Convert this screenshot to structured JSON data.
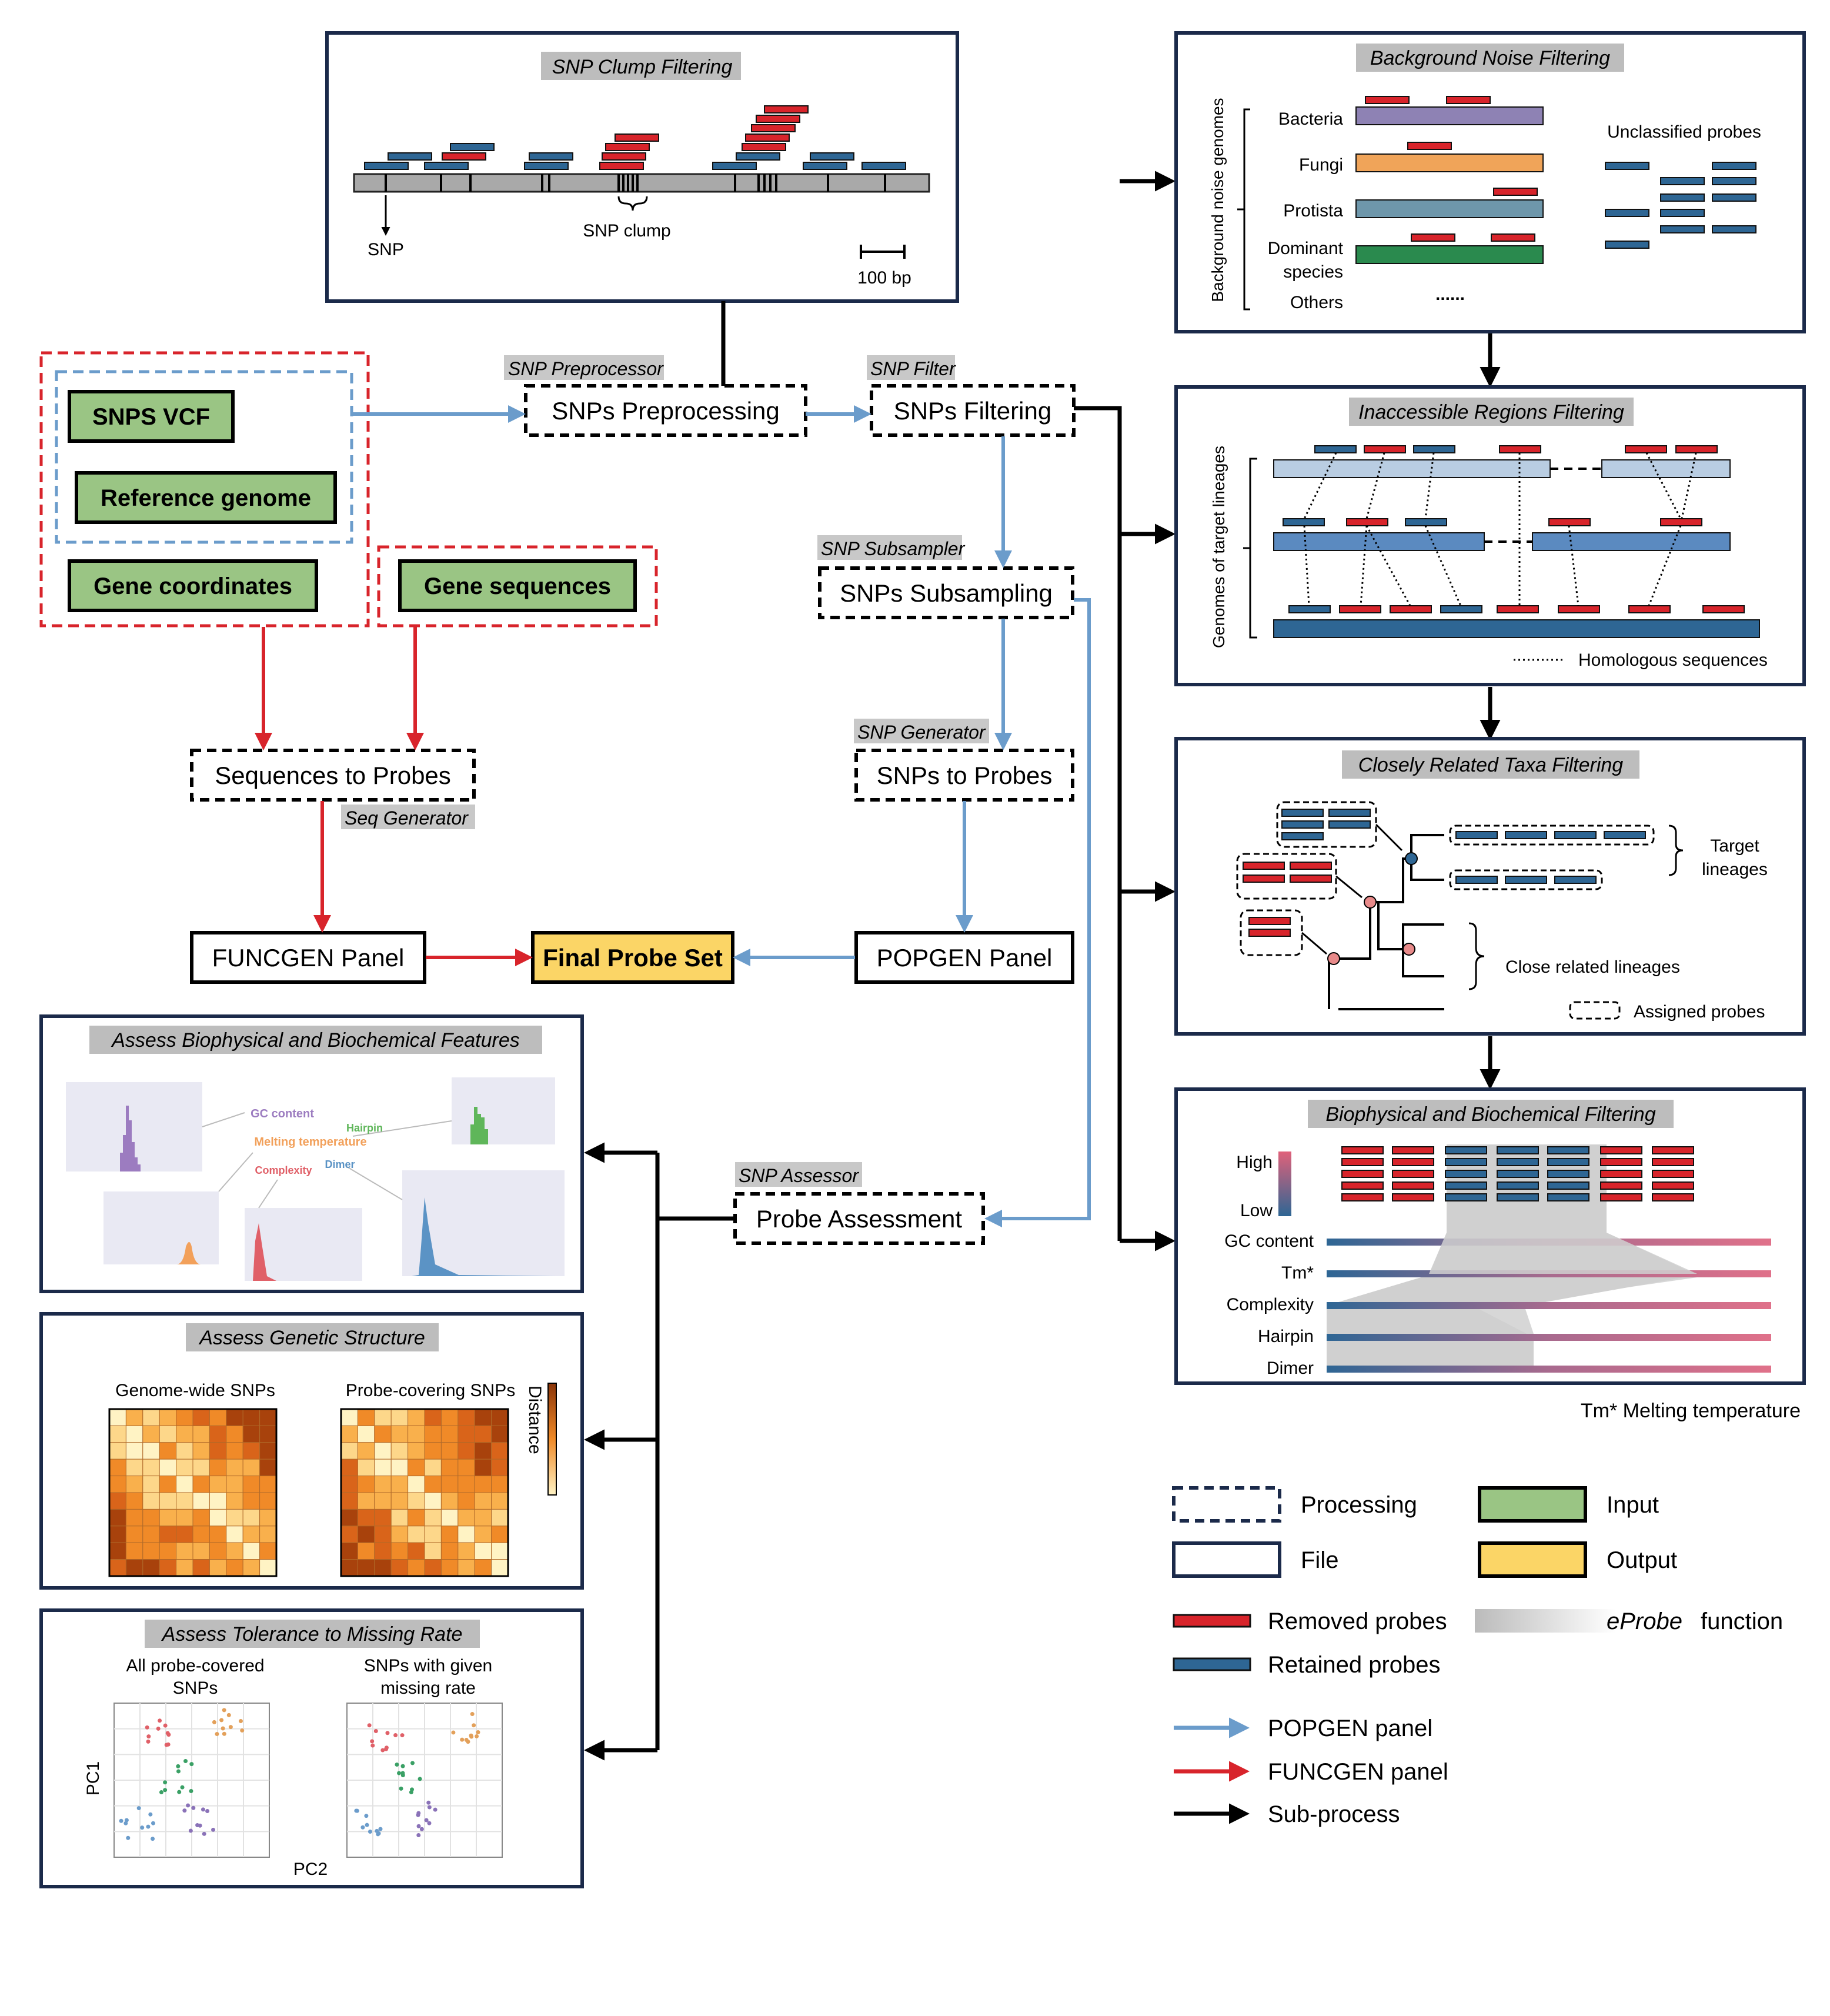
{
  "colors": {
    "retained": "#2e6694",
    "removed": "#d8242b",
    "input": "#9ac584",
    "output": "#fbd566",
    "popgen": "#6b9ccb",
    "funcgen": "#d8242b",
    "navy": "#1b2a4a"
  },
  "snp_clump": {
    "title": "SNP Clump Filtering",
    "snp": "SNP",
    "clump": "SNP clump",
    "scale": "100 bp"
  },
  "inputs": {
    "snps_vcf": "SNPS VCF",
    "reference": "Reference genome",
    "gene_coords": "Gene coordinates",
    "gene_seqs": "Gene sequences"
  },
  "nodes": {
    "snp_preprocessor": "SNP Preprocessor",
    "snps_preprocessing": "SNPs Preprocessing",
    "snp_filter": "SNP Filter",
    "snps_filtering": "SNPs Filtering",
    "snp_subsampler": "SNP Subsampler",
    "snps_subsampling": "SNPs Subsampling",
    "snp_generator": "SNP Generator",
    "snps_to_probes": "SNPs to Probes",
    "seq_to_probes": "Sequences to Probes",
    "seq_generator": "Seq Generator",
    "funcgen_panel": "FUNCGEN Panel",
    "final_probe_set": "Final Probe Set",
    "popgen_panel": "POPGEN Panel",
    "snp_assessor": "SNP Assessor",
    "probe_assessment": "Probe Assessment"
  },
  "bg_noise": {
    "title": "Background Noise Filtering",
    "axis": "Background noise genomes",
    "rows": [
      "Bacteria",
      "Fungi",
      "Protista",
      "Dominant",
      "species",
      "Others"
    ],
    "dots": "......",
    "unclassified": "Unclassified probes"
  },
  "inaccessible": {
    "title": "Inaccessible Regions Filtering",
    "axis": "Genomes of target lineages",
    "homologous": "Homologous sequences"
  },
  "closely": {
    "title": "Closely Related Taxa Filtering",
    "target": [
      "Target",
      "lineages"
    ],
    "close": "Close related lineages",
    "assigned": "Assigned probes"
  },
  "biophys": {
    "title": "Biophysical and Biochemical Filtering",
    "high": "High",
    "low": "Low",
    "metrics": [
      "GC content",
      "Tm*",
      "Complexity",
      "Hairpin",
      "Dimer"
    ],
    "tm_note": "Tm*  Melting temperature"
  },
  "assess_bio": {
    "title": "Assess Biophysical and Biochemical Features",
    "labels": [
      "GC content",
      "Hairpin",
      "Melting temperature",
      "Complexity",
      "Dimer"
    ]
  },
  "assess_gen": {
    "title": "Assess Genetic Structure",
    "left": "Genome-wide SNPs",
    "right": "Probe-covering SNPs",
    "scale": "Distance"
  },
  "assess_miss": {
    "title": "Assess Tolerance to Missing Rate",
    "left": [
      "All probe-covered",
      "SNPs"
    ],
    "right": [
      "SNPs with given",
      "missing rate"
    ],
    "ylab": "PC1",
    "xlab": "PC2"
  },
  "legend": {
    "processing": "Processing",
    "input": "Input",
    "file": "File",
    "output": "Output",
    "removed": "Removed probes",
    "eprobe_fn": "function",
    "eprobe": "eProbe",
    "retained": "Retained probes",
    "popgen": "POPGEN panel",
    "funcgen": "FUNCGEN panel",
    "subprocess": "Sub-process"
  }
}
